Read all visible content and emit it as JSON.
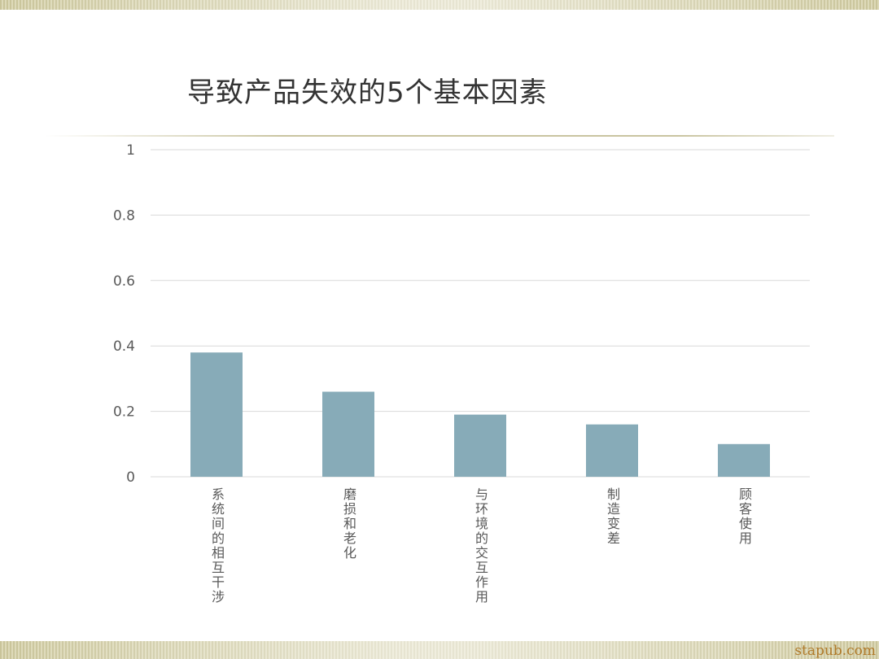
{
  "slide": {
    "title": "导致产品失效的5个基本因素",
    "watermark": "stapub.com"
  },
  "chart_data": {
    "type": "bar",
    "title": "",
    "xlabel": "",
    "ylabel": "",
    "categories": [
      "系统间的相互干涉",
      "磨损和老化",
      "与环境的交互作用",
      "制造变差",
      "顾客使用"
    ],
    "values": [
      0.38,
      0.26,
      0.19,
      0.16,
      0.1
    ],
    "ylim": [
      0,
      1
    ],
    "yticks": [
      "0",
      "0.2",
      "0.4",
      "0.6",
      "0.8",
      "1"
    ],
    "grid": true,
    "legend": "none",
    "colors": {
      "bar": "#87abb8",
      "grid": "#d9d9d9",
      "text": "#595959"
    }
  }
}
